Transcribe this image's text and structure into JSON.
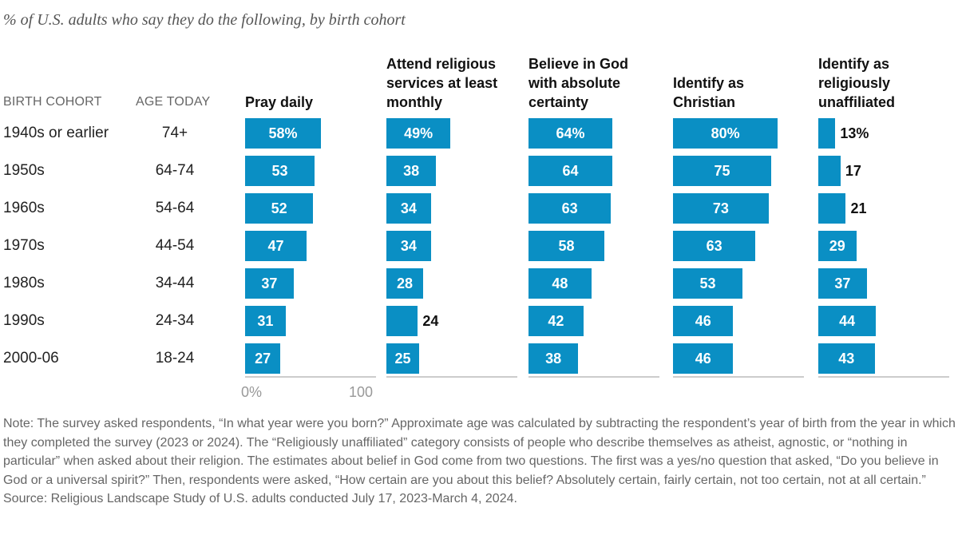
{
  "subtitle": "% of U.S. adults who say they do the following, by birth cohort",
  "column_headers": {
    "cohort": "BIRTH COHORT",
    "age": "AGE TODAY"
  },
  "rows": [
    {
      "cohort": "1940s or earlier",
      "age": "74+"
    },
    {
      "cohort": "1950s",
      "age": "64-74"
    },
    {
      "cohort": "1960s",
      "age": "54-64"
    },
    {
      "cohort": "1970s",
      "age": "44-54"
    },
    {
      "cohort": "1980s",
      "age": "34-44"
    },
    {
      "cohort": "1990s",
      "age": "24-34"
    },
    {
      "cohort": "2000-06",
      "age": "18-24"
    }
  ],
  "chart_data": {
    "type": "bar",
    "orientation": "horizontal",
    "categories": [
      "1940s or earlier",
      "1950s",
      "1960s",
      "1970s",
      "1980s",
      "1990s",
      "2000-06"
    ],
    "xlim": [
      0,
      100
    ],
    "tick_labels": [
      "0%",
      "100"
    ],
    "bar_color": "#0a8fc4",
    "series": [
      {
        "name": "Pray daily",
        "values": [
          58,
          53,
          52,
          47,
          37,
          31,
          27
        ]
      },
      {
        "name": "Attend religious services at least monthly",
        "values": [
          49,
          38,
          34,
          34,
          28,
          24,
          25
        ]
      },
      {
        "name": "Believe in God with absolute certainty",
        "values": [
          64,
          64,
          63,
          58,
          48,
          42,
          38
        ]
      },
      {
        "name": "Identify as Christian",
        "values": [
          80,
          75,
          73,
          63,
          53,
          46,
          46
        ]
      },
      {
        "name": "Identify as religiously unaffiliated",
        "values": [
          13,
          17,
          21,
          29,
          37,
          44,
          43
        ]
      }
    ]
  },
  "note": "Note: The survey asked respondents, “In what year were you born?” Approximate age was calculated by subtracting the respondent’s year of birth from the year in which they completed the survey (2023 or 2024). The “Religiously unaffiliated” category consists of people who describe themselves as atheist, agnostic, or “nothing in particular” when asked about their religion. The estimates about belief in God come from two questions. The first was a yes/no question that asked, “Do you believe in God or a universal spirit?” Then, respondents were asked, “How certain are you about this belief? Absolutely certain, fairly certain, not too certain, not at all certain.”",
  "source": "Source: Religious Landscape Study of U.S. adults conducted July 17, 2023-March 4, 2024."
}
